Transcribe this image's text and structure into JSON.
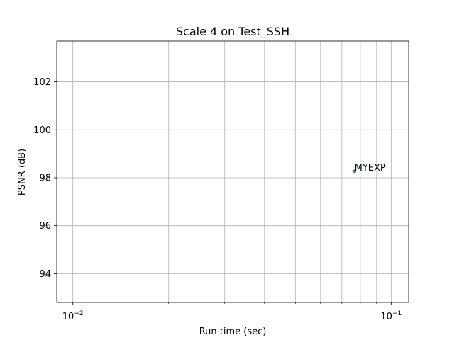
{
  "chart_data": {
    "type": "scatter",
    "title": "Scale 4 on Test_SSH",
    "xlabel": "Run time (sec)",
    "ylabel": "PSNR (dB)",
    "xscale": "log",
    "xlim": [
      0.0089,
      0.1135
    ],
    "ylim": [
      92.8,
      103.7
    ],
    "grid": true,
    "x_major_ticks": [
      {
        "value": 0.01,
        "base": "10",
        "exp": "−2"
      },
      {
        "value": 0.1,
        "base": "10",
        "exp": "−1"
      }
    ],
    "x_minor_gridlines": [
      0.02,
      0.03,
      0.04,
      0.05,
      0.06,
      0.07,
      0.08,
      0.09
    ],
    "y_ticks": [
      94,
      96,
      98,
      100,
      102
    ],
    "points": [
      {
        "x": 0.0767,
        "y": 98.27,
        "label": "MYEXP"
      }
    ],
    "colors": {
      "point": "#1f77b4",
      "grid": "#b0b0b0",
      "axes": "#000000"
    }
  }
}
